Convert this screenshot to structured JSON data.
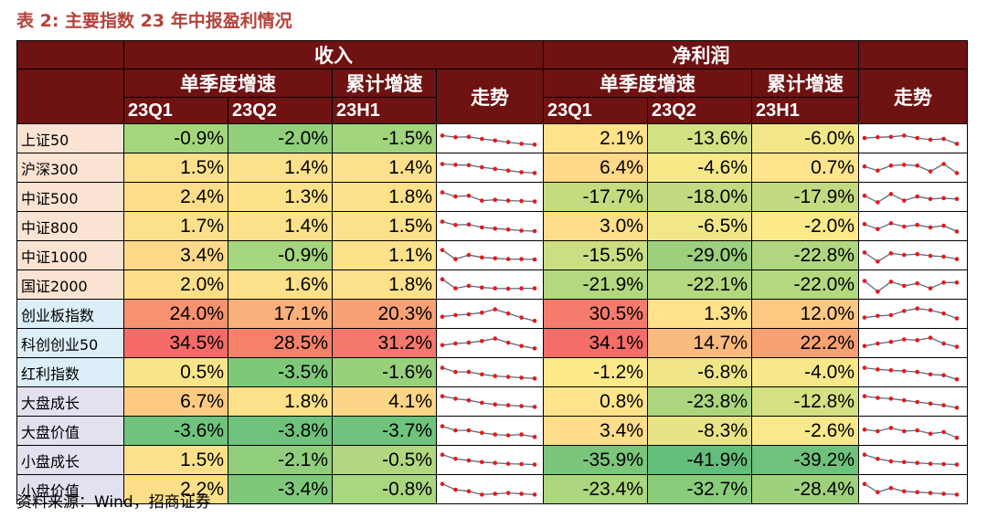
{
  "title": "表 2:  主要指数 23 年中报盈利情况",
  "source": "资料来源：Wind，招商证券",
  "header": {
    "income": "收入",
    "profit": "净利润",
    "quarter_growth": "单季度增速",
    "cumulative_growth": "累计增速",
    "trend": "走势",
    "q1": "23Q1",
    "q2": "23Q2",
    "h1": "23H1"
  },
  "colors": {
    "header_bg": "#6e1212",
    "spark_line": "#5b6b80",
    "spark_last": "#e8171b",
    "name_peach": "#fbe3d3",
    "name_blue": "#dceef8",
    "name_lavender": "#e3e1ef"
  },
  "rows": [
    {
      "name": "上证50",
      "name_bg": "#fbe3d3",
      "income": [
        {
          "text": "-0.9%",
          "bg": "#a5d67e"
        },
        {
          "text": "-2.0%",
          "bg": "#92cf7b"
        },
        {
          "text": "-1.5%",
          "bg": "#a0d47d"
        }
      ],
      "profit": [
        {
          "text": "2.1%",
          "bg": "#ffe28a"
        },
        {
          "text": "-13.6%",
          "bg": "#d3e083"
        },
        {
          "text": "-6.0%",
          "bg": "#f2e788"
        }
      ],
      "income_trend": [
        0.7,
        0.6,
        0.62,
        0.5,
        0.4,
        0.3,
        0.2,
        0.15
      ],
      "profit_trend": [
        0.55,
        0.6,
        0.62,
        0.7,
        0.55,
        0.45,
        0.5,
        0.2
      ]
    },
    {
      "name": "沪深300",
      "name_bg": "#fbe3d3",
      "income": [
        {
          "text": "1.5%",
          "bg": "#fde18a"
        },
        {
          "text": "1.4%",
          "bg": "#fde18a"
        },
        {
          "text": "1.4%",
          "bg": "#fde18a"
        }
      ],
      "profit": [
        {
          "text": "6.4%",
          "bg": "#ffd888"
        },
        {
          "text": "-4.6%",
          "bg": "#f7e888"
        },
        {
          "text": "0.7%",
          "bg": "#ffe48b"
        }
      ],
      "income_trend": [
        0.75,
        0.7,
        0.68,
        0.55,
        0.45,
        0.35,
        0.25,
        0.2
      ],
      "profit_trend": [
        0.6,
        0.35,
        0.65,
        0.7,
        0.65,
        0.3,
        0.75,
        0.2
      ]
    },
    {
      "name": "中证500",
      "name_bg": "#fbe3d3",
      "income": [
        {
          "text": "2.4%",
          "bg": "#fddd89"
        },
        {
          "text": "1.3%",
          "bg": "#fee28a"
        },
        {
          "text": "1.8%",
          "bg": "#fde08a"
        }
      ],
      "profit": [
        {
          "text": "-17.7%",
          "bg": "#c3dc80"
        },
        {
          "text": "-18.0%",
          "bg": "#c2db80"
        },
        {
          "text": "-17.9%",
          "bg": "#c2db80"
        }
      ],
      "income_trend": [
        0.8,
        0.55,
        0.6,
        0.3,
        0.35,
        0.3,
        0.28,
        0.25
      ],
      "profit_trend": [
        0.6,
        0.2,
        0.7,
        0.3,
        0.55,
        0.4,
        0.45,
        0.4
      ]
    },
    {
      "name": "中证800",
      "name_bg": "#fbe3d3",
      "income": [
        {
          "text": "1.7%",
          "bg": "#fde08a"
        },
        {
          "text": "1.4%",
          "bg": "#fde18a"
        },
        {
          "text": "1.5%",
          "bg": "#fde18a"
        }
      ],
      "profit": [
        {
          "text": "3.0%",
          "bg": "#ffde89"
        },
        {
          "text": "-6.5%",
          "bg": "#f1e788"
        },
        {
          "text": "-2.0%",
          "bg": "#fbe98a"
        }
      ],
      "income_trend": [
        0.8,
        0.6,
        0.62,
        0.45,
        0.38,
        0.32,
        0.25,
        0.22
      ],
      "profit_trend": [
        0.65,
        0.35,
        0.7,
        0.5,
        0.6,
        0.45,
        0.55,
        0.2
      ]
    },
    {
      "name": "中证1000",
      "name_bg": "#fbe3d3",
      "income": [
        {
          "text": "3.4%",
          "bg": "#fdd988"
        },
        {
          "text": "-0.9%",
          "bg": "#a5d67e"
        },
        {
          "text": "1.1%",
          "bg": "#fee28a"
        }
      ],
      "profit": [
        {
          "text": "-15.5%",
          "bg": "#cbde81"
        },
        {
          "text": "-29.0%",
          "bg": "#9cd07c"
        },
        {
          "text": "-22.8%",
          "bg": "#b0d77f"
        }
      ],
      "income_trend": [
        0.85,
        0.3,
        0.55,
        0.4,
        0.35,
        0.3,
        0.3,
        0.28
      ],
      "profit_trend": [
        0.7,
        0.15,
        0.65,
        0.55,
        0.6,
        0.5,
        0.45,
        0.3
      ]
    },
    {
      "name": "国证2000",
      "name_bg": "#fbe3d3",
      "income": [
        {
          "text": "2.0%",
          "bg": "#fddf89"
        },
        {
          "text": "1.6%",
          "bg": "#fde08a"
        },
        {
          "text": "1.8%",
          "bg": "#fde08a"
        }
      ],
      "profit": [
        {
          "text": "-21.9%",
          "bg": "#b4d87f"
        },
        {
          "text": "-22.1%",
          "bg": "#b3d87f"
        },
        {
          "text": "-22.0%",
          "bg": "#b3d87f"
        }
      ],
      "income_trend": [
        0.85,
        0.3,
        0.45,
        0.35,
        0.3,
        0.28,
        0.3,
        0.3
      ],
      "profit_trend": [
        0.75,
        0.1,
        0.7,
        0.45,
        0.6,
        0.3,
        0.65,
        0.65
      ]
    },
    {
      "name": "创业板指数",
      "name_bg": "#dceef8",
      "income": [
        {
          "text": "24.0%",
          "bg": "#f6926f"
        },
        {
          "text": "17.1%",
          "bg": "#f9b07a"
        },
        {
          "text": "20.3%",
          "bg": "#f8a174"
        }
      ],
      "profit": [
        {
          "text": "30.5%",
          "bg": "#f57c6c"
        },
        {
          "text": "1.3%",
          "bg": "#ffe28a"
        },
        {
          "text": "12.0%",
          "bg": "#fcc982"
        }
      ],
      "income_trend": [
        0.35,
        0.45,
        0.5,
        0.6,
        0.8,
        0.55,
        0.3,
        0.1
      ],
      "profit_trend": [
        0.3,
        0.4,
        0.45,
        0.7,
        0.85,
        0.75,
        0.55,
        0.25
      ]
    },
    {
      "name": "科创创业50",
      "name_bg": "#dceef8",
      "income": [
        {
          "text": "34.5%",
          "bg": "#f46b68"
        },
        {
          "text": "28.5%",
          "bg": "#f58169"
        },
        {
          "text": "31.2%",
          "bg": "#f4786b"
        }
      ],
      "profit": [
        {
          "text": "34.1%",
          "bg": "#f46d69"
        },
        {
          "text": "14.7%",
          "bg": "#fabc7e"
        },
        {
          "text": "22.2%",
          "bg": "#f7a071"
        }
      ],
      "income_trend": [
        0.4,
        0.5,
        0.55,
        0.65,
        0.8,
        0.55,
        0.35,
        0.2
      ],
      "profit_trend": [
        0.35,
        0.5,
        0.6,
        0.75,
        0.7,
        0.85,
        0.5,
        0.3
      ]
    },
    {
      "name": "红利指数",
      "name_bg": "#dceef8",
      "income": [
        {
          "text": "0.5%",
          "bg": "#fae48a"
        },
        {
          "text": "-3.5%",
          "bg": "#7ec87a"
        },
        {
          "text": "-1.6%",
          "bg": "#98d17c"
        }
      ],
      "profit": [
        {
          "text": "-1.2%",
          "bg": "#fde98a"
        },
        {
          "text": "-6.8%",
          "bg": "#f0e688"
        },
        {
          "text": "-4.0%",
          "bg": "#f8e889"
        }
      ],
      "income_trend": [
        0.8,
        0.55,
        0.55,
        0.4,
        0.3,
        0.25,
        0.2,
        0.15
      ],
      "profit_trend": [
        0.8,
        0.7,
        0.65,
        0.6,
        0.55,
        0.4,
        0.35,
        0.1
      ]
    },
    {
      "name": "大盘成长",
      "name_bg": "#e3e1ef",
      "income": [
        {
          "text": "6.7%",
          "bg": "#fcca82"
        },
        {
          "text": "1.8%",
          "bg": "#fde08a"
        },
        {
          "text": "4.1%",
          "bg": "#fdd587"
        }
      ],
      "profit": [
        {
          "text": "0.8%",
          "bg": "#ffe48b"
        },
        {
          "text": "-23.8%",
          "bg": "#acd67e"
        },
        {
          "text": "-12.8%",
          "bg": "#d5e083"
        }
      ],
      "income_trend": [
        0.85,
        0.7,
        0.6,
        0.45,
        0.35,
        0.3,
        0.25,
        0.2
      ],
      "profit_trend": [
        0.85,
        0.75,
        0.7,
        0.6,
        0.5,
        0.4,
        0.3,
        0.15
      ]
    },
    {
      "name": "大盘价值",
      "name_bg": "#e3e1ef",
      "income": [
        {
          "text": "-3.6%",
          "bg": "#6fc37c"
        },
        {
          "text": "-3.8%",
          "bg": "#6ec27c"
        },
        {
          "text": "-3.7%",
          "bg": "#6fc37c"
        }
      ],
      "profit": [
        {
          "text": "3.4%",
          "bg": "#ffdd89"
        },
        {
          "text": "-8.3%",
          "bg": "#e8e486"
        },
        {
          "text": "-2.6%",
          "bg": "#fae98a"
        }
      ],
      "income_trend": [
        0.8,
        0.55,
        0.55,
        0.4,
        0.3,
        0.25,
        0.3,
        0.15
      ],
      "profit_trend": [
        0.6,
        0.5,
        0.7,
        0.5,
        0.55,
        0.35,
        0.45,
        0.1
      ]
    },
    {
      "name": "小盘成长",
      "name_bg": "#e3e1ef",
      "income": [
        {
          "text": "1.5%",
          "bg": "#fde18a"
        },
        {
          "text": "-2.1%",
          "bg": "#90ce7b"
        },
        {
          "text": "-0.5%",
          "bg": "#b1d880"
        }
      ],
      "profit": [
        {
          "text": "-35.9%",
          "bg": "#7bc67b"
        },
        {
          "text": "-41.9%",
          "bg": "#63be7b"
        },
        {
          "text": "-39.2%",
          "bg": "#6ec27b"
        }
      ],
      "income_trend": [
        0.85,
        0.6,
        0.5,
        0.4,
        0.35,
        0.3,
        0.28,
        0.25
      ],
      "profit_trend": [
        0.85,
        0.6,
        0.45,
        0.4,
        0.35,
        0.3,
        0.28,
        0.25
      ]
    },
    {
      "name": "小盘价值",
      "name_bg": "#e3e1ef",
      "income": [
        {
          "text": "2.2%",
          "bg": "#fddf89"
        },
        {
          "text": "-3.4%",
          "bg": "#7ec87a"
        },
        {
          "text": "-0.8%",
          "bg": "#a8d77f"
        }
      ],
      "profit": [
        {
          "text": "-23.4%",
          "bg": "#add77e"
        },
        {
          "text": "-32.7%",
          "bg": "#8bcc7c"
        },
        {
          "text": "-28.4%",
          "bg": "#9fd17d"
        }
      ],
      "income_trend": [
        0.85,
        0.5,
        0.4,
        0.2,
        0.25,
        0.3,
        0.25,
        0.2
      ],
      "profit_trend": [
        0.85,
        0.35,
        0.6,
        0.4,
        0.35,
        0.3,
        0.25,
        0.2
      ]
    }
  ]
}
